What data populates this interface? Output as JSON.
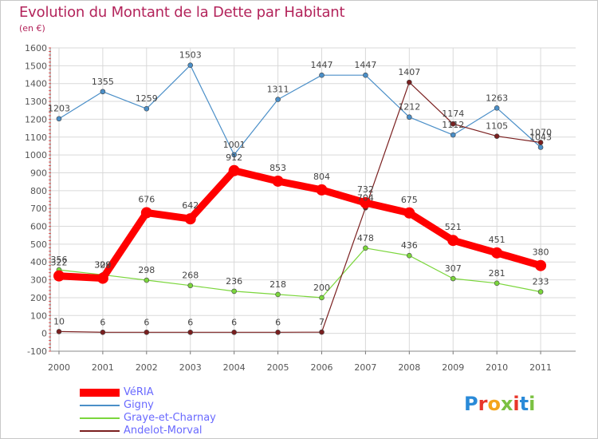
{
  "chart_data": {
    "type": "line",
    "title": "Evolution du Montant de la Dette par Habitant",
    "subtitle": "(en €)",
    "ylim": [
      -100,
      1600
    ],
    "y_ticks": [
      -100,
      0,
      100,
      200,
      300,
      400,
      500,
      600,
      700,
      800,
      900,
      1000,
      1100,
      1200,
      1300,
      1400,
      1500,
      1600
    ],
    "categories": [
      "2000",
      "2001",
      "2002",
      "2003",
      "2004",
      "2005",
      "2006",
      "2007",
      "2008",
      "2009",
      "2010",
      "2011"
    ],
    "grid": true,
    "legend_position": "bottom-left",
    "series": [
      {
        "name": "VéRIA",
        "color": "#ff0000",
        "emphasis": true,
        "values": [
          322,
          309,
          676,
          642,
          912,
          853,
          804,
          732,
          675,
          521,
          451,
          380
        ]
      },
      {
        "name": "Gigny",
        "color": "#4b8fc8",
        "emphasis": false,
        "values": [
          1203,
          1355,
          1259,
          1503,
          1001,
          1311,
          1447,
          1447,
          1212,
          1112,
          1263,
          1043
        ]
      },
      {
        "name": "Graye-et-Charnay",
        "color": "#7bd63c",
        "emphasis": false,
        "values": [
          356,
          328,
          298,
          268,
          236,
          218,
          200,
          478,
          436,
          307,
          281,
          233
        ]
      },
      {
        "name": "Andelot-Morval",
        "color": "#7a1f1f",
        "emphasis": false,
        "values": [
          10,
          6,
          6,
          6,
          6,
          6,
          7,
          704,
          1407,
          1174,
          1105,
          1070
        ]
      }
    ]
  },
  "logo": {
    "text": "Proxiti",
    "letters": [
      "P",
      "r",
      "o",
      "x",
      "i",
      "t",
      "i"
    ]
  }
}
